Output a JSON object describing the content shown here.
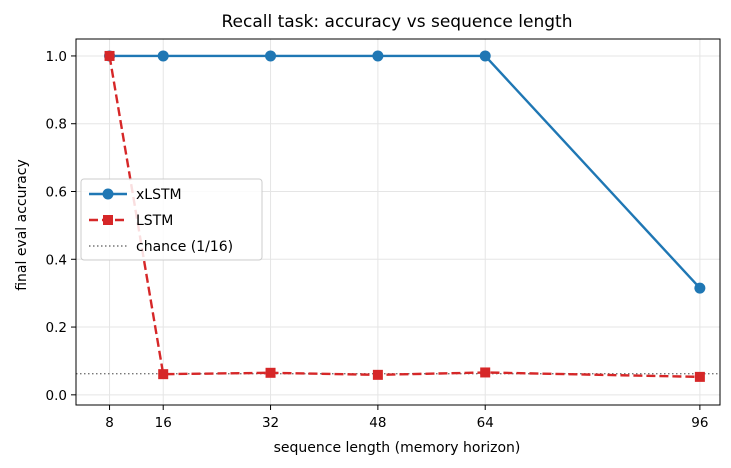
{
  "chart_data": {
    "type": "line",
    "title": "Recall task: accuracy vs sequence length",
    "xlabel": "sequence length (memory horizon)",
    "ylabel": "final eval accuracy",
    "xlim": [
      3,
      99
    ],
    "ylim": [
      -0.03,
      1.05
    ],
    "xticks": [
      8,
      16,
      32,
      48,
      64,
      96
    ],
    "yticks": [
      0.0,
      0.2,
      0.4,
      0.6,
      0.8,
      1.0
    ],
    "ytick_labels": [
      "0.0",
      "0.2",
      "0.4",
      "0.6",
      "0.8",
      "1.0"
    ],
    "grid": true,
    "legend_position": "center-left",
    "series": [
      {
        "name": "xLSTM",
        "color": "#1f77b4",
        "linestyle": "solid",
        "marker": "circle",
        "x": [
          8,
          16,
          32,
          48,
          64,
          96
        ],
        "y": [
          1.0,
          1.0,
          1.0,
          1.0,
          1.0,
          0.315
        ]
      },
      {
        "name": "LSTM",
        "color": "#d62728",
        "linestyle": "dashed",
        "marker": "square",
        "x": [
          8,
          16,
          32,
          48,
          64,
          96
        ],
        "y": [
          1.0,
          0.061,
          0.065,
          0.059,
          0.066,
          0.053
        ]
      }
    ],
    "reference_line": {
      "name": "chance (1/16)",
      "value": 0.0625,
      "color": "#777777",
      "linestyle": "dotted"
    }
  }
}
